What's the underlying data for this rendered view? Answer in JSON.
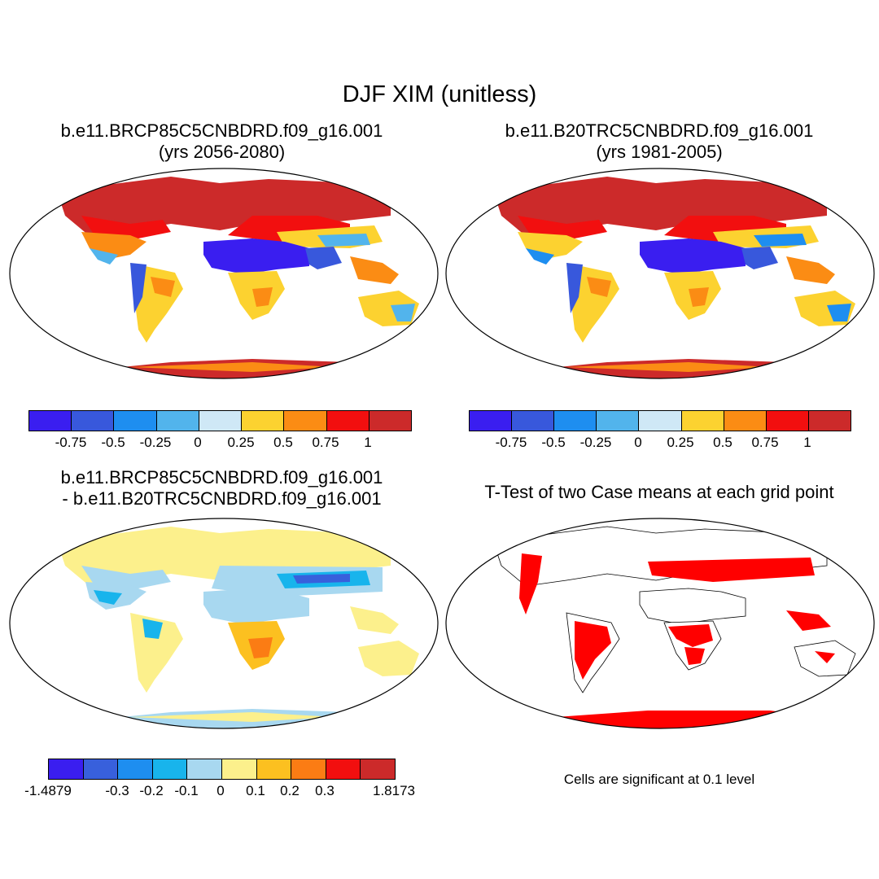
{
  "title": "DJF XIM (unitless)",
  "panels": [
    {
      "title_line1": "b.e11.BRCP85C5CNBDRD.f09_g16.001",
      "title_line2": "(yrs 2056-2080)",
      "colorbar": {
        "colors": [
          "#3a1ef0",
          "#3858dc",
          "#1e8ef0",
          "#52b4ec",
          "#cfe8f6",
          "#fcd230",
          "#fb8c14",
          "#f20f0f",
          "#cc2a2a"
        ],
        "labels": [
          "-0.75",
          "-0.5",
          "-0.25",
          "0",
          "0.25",
          "0.5",
          "0.75",
          "1"
        ]
      }
    },
    {
      "title_line1": "b.e11.B20TRC5CNBDRD.f09_g16.001",
      "title_line2": "(yrs 1981-2005)",
      "colorbar": {
        "colors": [
          "#3a1ef0",
          "#3858dc",
          "#1e8ef0",
          "#52b4ec",
          "#cfe8f6",
          "#fcd230",
          "#fb8c14",
          "#f20f0f",
          "#cc2a2a"
        ],
        "labels": [
          "-0.75",
          "-0.5",
          "-0.25",
          "0",
          "0.25",
          "0.5",
          "0.75",
          "1"
        ]
      }
    },
    {
      "title_line1": "b.e11.BRCP85C5CNBDRD.f09_g16.001",
      "title_line2": "- b.e11.B20TRC5CNBDRD.f09_g16.001",
      "colorbar": {
        "colors": [
          "#3a1ef0",
          "#3860dc",
          "#1e8ef0",
          "#18b4ec",
          "#a8d8f0",
          "#fcf08c",
          "#fcc020",
          "#fb7c14",
          "#f20f0f",
          "#cc2a2a"
        ],
        "labels": [
          "-1.4879",
          "-0.3",
          "-0.2",
          "-0.1",
          "0",
          "0.1",
          "0.2",
          "0.3",
          "1.8173"
        ]
      }
    },
    {
      "title_line1": "T-Test of two Case means at each grid point",
      "note": "Cells are significant at 0.1 level",
      "significant_color": "#ff0000"
    }
  ]
}
